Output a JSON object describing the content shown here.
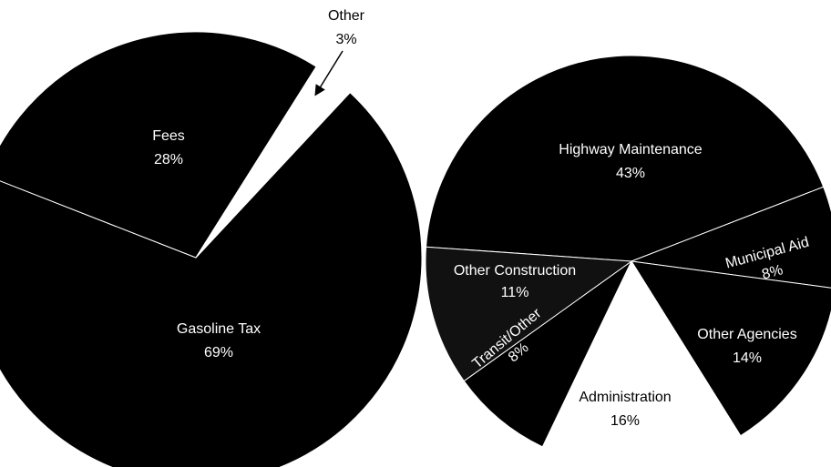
{
  "chart_data": [
    {
      "type": "pie",
      "categories": [
        "Gasoline Tax",
        "Fees",
        "Other"
      ],
      "values": [
        69,
        28,
        3
      ],
      "value_labels": [
        "69%",
        "28%",
        "3%"
      ],
      "colors": [
        "#000000",
        "#000000",
        "#ffffff"
      ]
    },
    {
      "type": "pie",
      "categories": [
        "Highway Maintenance",
        "Municipal Aid",
        "Other Agencies",
        "Administration",
        "Transit/Other",
        "Other Construction"
      ],
      "values": [
        43,
        8,
        14,
        16,
        8,
        11
      ],
      "value_labels": [
        "43%",
        "8%",
        "14%",
        "16%",
        "8%",
        "11%"
      ],
      "colors": [
        "#000000",
        "#000000",
        "#000000",
        "#ffffff",
        "#000000",
        "#111111"
      ]
    }
  ]
}
